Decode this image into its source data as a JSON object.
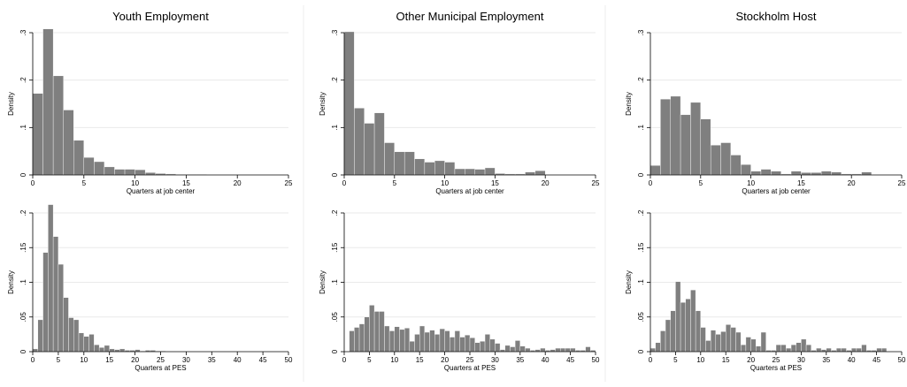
{
  "chart_data": [
    {
      "type": "bar",
      "title": "Youth Employment",
      "xlabel": "Quarters at job center",
      "ylabel": "Density",
      "xlim": [
        0,
        25
      ],
      "ylim": [
        0,
        0.3
      ],
      "xticks": [
        "0",
        "5",
        "10",
        "15",
        "20",
        "25"
      ],
      "yticks": [
        "0",
        ".1",
        ".2",
        ".3"
      ],
      "bin_width": 1,
      "x": [
        0.5,
        1.5,
        2.5,
        3.5,
        4.5,
        5.5,
        6.5,
        7.5,
        8.5,
        9.5,
        10.5,
        11.5,
        12.5,
        13.5,
        14.5,
        15.5,
        16.5
      ],
      "values": [
        0.172,
        0.308,
        0.209,
        0.137,
        0.073,
        0.037,
        0.028,
        0.017,
        0.012,
        0.012,
        0.011,
        0.005,
        0.003,
        0.002,
        0.001,
        0.001,
        0.001
      ]
    },
    {
      "type": "bar",
      "title": "Other Municipal Employment",
      "xlabel": "Quarters at job center",
      "ylabel": "Density",
      "xlim": [
        0,
        25
      ],
      "ylim": [
        0,
        0.3
      ],
      "xticks": [
        "0",
        "5",
        "10",
        "15",
        "20",
        "25"
      ],
      "yticks": [
        "0",
        ".1",
        ".2",
        ".3"
      ],
      "bin_width": 1,
      "x": [
        0.5,
        1.5,
        2.5,
        3.5,
        4.5,
        5.5,
        6.5,
        7.5,
        8.5,
        9.5,
        10.5,
        11.5,
        12.5,
        13.5,
        14.5,
        15.5,
        16.5,
        17.5,
        18.5,
        19.5
      ],
      "values": [
        0.302,
        0.141,
        0.109,
        0.131,
        0.068,
        0.049,
        0.049,
        0.034,
        0.027,
        0.03,
        0.027,
        0.013,
        0.013,
        0.012,
        0.015,
        0.003,
        0.002,
        0.002,
        0.006,
        0.009
      ]
    },
    {
      "type": "bar",
      "title": "Stockholm Host",
      "xlabel": "Quarters at job center",
      "ylabel": "Density",
      "xlim": [
        0,
        25
      ],
      "ylim": [
        0,
        0.3
      ],
      "xticks": [
        "0",
        "5",
        "10",
        "15",
        "20",
        "25"
      ],
      "yticks": [
        "0",
        ".1",
        ".2",
        ".3"
      ],
      "bin_width": 1,
      "x": [
        0.5,
        1.5,
        2.5,
        3.5,
        4.5,
        5.5,
        6.5,
        7.5,
        8.5,
        9.5,
        10.5,
        11.5,
        12.5,
        13.5,
        14.5,
        15.5,
        16.5,
        17.5,
        18.5,
        19.5,
        20.5,
        21.5
      ],
      "values": [
        0.02,
        0.16,
        0.166,
        0.127,
        0.153,
        0.118,
        0.063,
        0.068,
        0.042,
        0.022,
        0.008,
        0.012,
        0.008,
        0.002,
        0.008,
        0.005,
        0.005,
        0.008,
        0.006,
        0.002,
        0.002,
        0.006
      ]
    },
    {
      "type": "bar",
      "title": "",
      "xlabel": "Quarters at PES",
      "ylabel": "Density",
      "xlim": [
        0,
        50
      ],
      "ylim": [
        0,
        0.2
      ],
      "xticks": [
        "0",
        "5",
        "10",
        "15",
        "20",
        "25",
        "30",
        "35",
        "40",
        "45",
        "50"
      ],
      "yticks": [
        "0",
        ".05",
        ".1",
        ".15",
        ".2"
      ],
      "bin_width": 1,
      "x": [
        0.5,
        1.5,
        2.5,
        3.5,
        4.5,
        5.5,
        6.5,
        7.5,
        8.5,
        9.5,
        10.5,
        11.5,
        12.5,
        13.5,
        14.5,
        15.5,
        16.5,
        17.5,
        18.5,
        19.5,
        20.5,
        21.5,
        22.5,
        23.5,
        24.5,
        25.5
      ],
      "values": [
        0.004,
        0.046,
        0.143,
        0.212,
        0.166,
        0.126,
        0.078,
        0.049,
        0.046,
        0.027,
        0.022,
        0.025,
        0.01,
        0.006,
        0.009,
        0.004,
        0.003,
        0.004,
        0.002,
        0.002,
        0.003,
        0.001,
        0.002,
        0.002,
        0.001,
        0.001
      ]
    },
    {
      "type": "bar",
      "title": "",
      "xlabel": "Quarters at PES",
      "ylabel": "Density",
      "xlim": [
        0,
        50
      ],
      "ylim": [
        0,
        0.2
      ],
      "xticks": [
        "0",
        "5",
        "10",
        "15",
        "20",
        "25",
        "30",
        "35",
        "40",
        "45",
        "50"
      ],
      "yticks": [
        "0",
        ".05",
        ".1",
        ".15",
        ".2"
      ],
      "bin_width": 1,
      "x": [
        1.5,
        2.5,
        3.5,
        4.5,
        5.5,
        6.5,
        7.5,
        8.5,
        9.5,
        10.5,
        11.5,
        12.5,
        13.5,
        14.5,
        15.5,
        16.5,
        17.5,
        18.5,
        19.5,
        20.5,
        21.5,
        22.5,
        23.5,
        24.5,
        25.5,
        26.5,
        27.5,
        28.5,
        29.5,
        30.5,
        31.5,
        32.5,
        33.5,
        34.5,
        35.5,
        36.5,
        37.5,
        38.5,
        39.5,
        40.5,
        41.5,
        42.5,
        43.5,
        44.5,
        45.5,
        46.5,
        47.5,
        48.5,
        49.5
      ],
      "values": [
        0.03,
        0.035,
        0.04,
        0.05,
        0.067,
        0.058,
        0.058,
        0.037,
        0.03,
        0.036,
        0.032,
        0.034,
        0.015,
        0.025,
        0.037,
        0.028,
        0.031,
        0.025,
        0.033,
        0.03,
        0.021,
        0.03,
        0.021,
        0.024,
        0.02,
        0.013,
        0.015,
        0.025,
        0.018,
        0.012,
        0.003,
        0.009,
        0.007,
        0.016,
        0.008,
        0.005,
        0.002,
        0.003,
        0.005,
        0.002,
        0.003,
        0.005,
        0.005,
        0.005,
        0.005,
        0.002,
        0.002,
        0.007,
        0.002
      ]
    },
    {
      "type": "bar",
      "title": "",
      "xlabel": "Quarters at PES",
      "ylabel": "Density",
      "xlim": [
        0,
        50
      ],
      "ylim": [
        0,
        0.2
      ],
      "xticks": [
        "0",
        "5",
        "10",
        "15",
        "20",
        "25",
        "30",
        "35",
        "40",
        "45",
        "50"
      ],
      "yticks": [
        "0",
        ".05",
        ".1",
        ".15",
        ".2"
      ],
      "bin_width": 1,
      "x": [
        0.5,
        1.5,
        2.5,
        3.5,
        4.5,
        5.5,
        6.5,
        7.5,
        8.5,
        9.5,
        10.5,
        11.5,
        12.5,
        13.5,
        14.5,
        15.5,
        16.5,
        17.5,
        18.5,
        19.5,
        20.5,
        21.5,
        22.5,
        23.5,
        24.5,
        25.5,
        26.5,
        27.5,
        28.5,
        29.5,
        30.5,
        31.5,
        32.5,
        33.5,
        34.5,
        35.5,
        36.5,
        37.5,
        38.5,
        39.5,
        40.5,
        41.5,
        42.5,
        43.5,
        44.5,
        45.5,
        46.5
      ],
      "values": [
        0.005,
        0.013,
        0.03,
        0.046,
        0.059,
        0.101,
        0.071,
        0.076,
        0.089,
        0.059,
        0.035,
        0.016,
        0.031,
        0.025,
        0.029,
        0.039,
        0.035,
        0.028,
        0.01,
        0.021,
        0.018,
        0.008,
        0.028,
        0.002,
        0.002,
        0.01,
        0.01,
        0.005,
        0.01,
        0.013,
        0.018,
        0.01,
        0.002,
        0.005,
        0.003,
        0.005,
        0.002,
        0.005,
        0.005,
        0.002,
        0.005,
        0.005,
        0.01,
        0.002,
        0.002,
        0.005,
        0.005
      ]
    }
  ]
}
